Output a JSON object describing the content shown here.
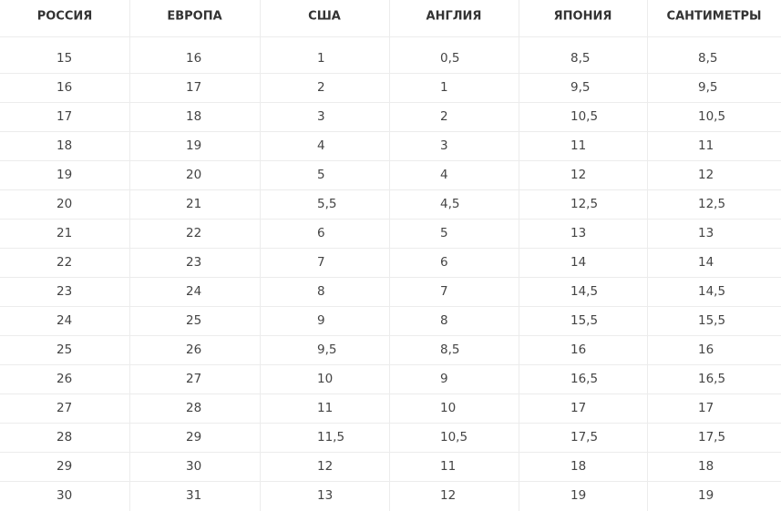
{
  "table": {
    "header": [
      "РОССИЯ",
      "ЕВРОПА",
      "США",
      "АНГЛИЯ",
      "ЯПОНИЯ",
      "САНТИМЕТРЫ"
    ],
    "rows": [
      [
        "15",
        "16",
        "1",
        "0,5",
        "8,5",
        "8,5"
      ],
      [
        "16",
        "17",
        "2",
        "1",
        "9,5",
        "9,5"
      ],
      [
        "17",
        "18",
        "3",
        "2",
        "10,5",
        "10,5"
      ],
      [
        "18",
        "19",
        "4",
        "3",
        "11",
        "11"
      ],
      [
        "19",
        "20",
        "5",
        "4",
        "12",
        "12"
      ],
      [
        "20",
        "21",
        "5,5",
        "4,5",
        "12,5",
        "12,5"
      ],
      [
        "21",
        "22",
        "6",
        "5",
        "13",
        "13"
      ],
      [
        "22",
        "23",
        "7",
        "6",
        "14",
        "14"
      ],
      [
        "23",
        "24",
        "8",
        "7",
        "14,5",
        "14,5"
      ],
      [
        "24",
        "25",
        "9",
        "8",
        "15,5",
        "15,5"
      ],
      [
        "25",
        "26",
        "9,5",
        "8,5",
        "16",
        "16"
      ],
      [
        "26",
        "27",
        "10",
        "9",
        "16,5",
        "16,5"
      ],
      [
        "27",
        "28",
        "11",
        "10",
        "17",
        "17"
      ],
      [
        "28",
        "29",
        "11,5",
        "10,5",
        "17,5",
        "17,5"
      ],
      [
        "29",
        "30",
        "12",
        "11",
        "18",
        "18"
      ],
      [
        "30",
        "31",
        "13",
        "12",
        "19",
        "19"
      ]
    ]
  }
}
